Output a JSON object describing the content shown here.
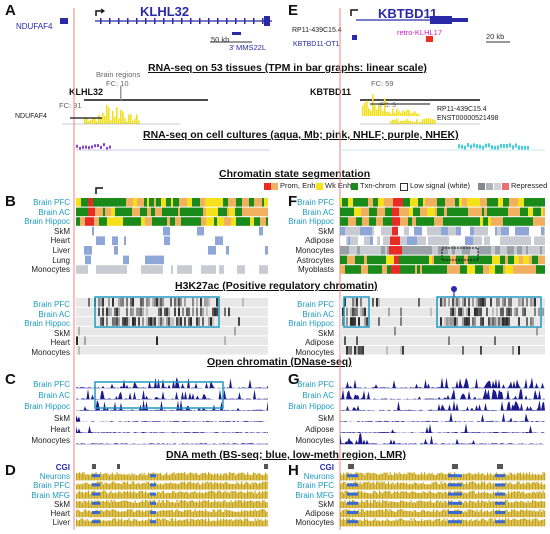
{
  "panels": {
    "A": "A",
    "B": "B",
    "C": "C",
    "D": "D",
    "E": "E",
    "F": "F",
    "G": "G",
    "H": "H"
  },
  "sections": {
    "rnaseq_tissues": "RNA-seq on 53 tissues (TPM in bar graphs: linear scale)",
    "rnaseq_cultures": "RNA-seq on cell cultures (aqua, Mb; pink, NHLF; purple, NHEK)",
    "chromatin_state": "Chromatin state segmentation",
    "h3k27ac": "H3K27ac (Positive regulatory chromatin)",
    "open_chromatin": "Open chromatin (DNase-seq)",
    "dna_meth": "DNA meth (BS-seq; blue, low-meth region, LMR)"
  },
  "legend": {
    "prom_enh": "Prom, Enh",
    "wk_enh": "Wk Enh",
    "txn_chrom": "Txn-chrom",
    "low_signal": "Low signal (white)",
    "repressed": "Repressed",
    "colors": {
      "prom": "#e82b24",
      "enh": "#f0b060",
      "wk": "#f5e11a",
      "txn": "#1a8a1a",
      "rep": "#9aa0a8"
    }
  },
  "left": {
    "genes": {
      "klhl32": "KLHL32",
      "nduf": "NDUFAF4",
      "mms": "MMS22L",
      "scale": "50 kb",
      "klhl32_small": "KLHL32",
      "nduf_small": "NDUFAF4",
      "three": "3'"
    },
    "brain_regions": "Brain regions",
    "fc_10": "FC: 10",
    "fc_31": "FC: 31",
    "tracks_B": [
      "Brain PFC",
      "Brain AC",
      "Brain Hippoc",
      "SkM",
      "Heart",
      "Liver",
      "Lung",
      "Monocytes"
    ],
    "tracks_K": [
      "Brain PFC",
      "Brain AC",
      "Brain Hippoc",
      "SkM",
      "Heart",
      "Monocytes"
    ],
    "tracks_C": [
      "Brain PFC",
      "Brain AC",
      "Brain Hippoc",
      "SkM",
      "Heart",
      "Monocytes"
    ],
    "tracks_D": [
      "CGI",
      "Neurons",
      "Brain PFC",
      "Brain MFG",
      "SkM",
      "Heart",
      "Liver"
    ]
  },
  "right": {
    "genes": {
      "kbtbd11": "KBTBD11",
      "rp11": "RP11-439C15.4",
      "kbtbd11_ot1": "KBTBD11-OT1",
      "retro": "retro-KLHL17",
      "scale": "20 kb",
      "kbtbd11_small": "KBTBD11",
      "rp11_b": "RP11-439C15.4",
      "enst": "ENST00000521498"
    },
    "fc_59": "FC: 59",
    "fc_5": "FC: 5",
    "tracks_F": [
      "Brain PFC",
      "Brain AC",
      "Brain Hippoc",
      "SkM",
      "Adipose",
      "Monocytes",
      "Astrocytes",
      "Myoblasts"
    ],
    "tracks_K": [
      "Brain PFC",
      "Brain AC",
      "Brain Hippoc",
      "SkM",
      "Adipose",
      "Monocytes"
    ],
    "tracks_G": [
      "Brain PFC",
      "Brain AC",
      "Brain Hippoc",
      "SkM",
      "Adipose",
      "Monocytes"
    ],
    "tracks_H": [
      "CGI",
      "Neurons",
      "Brain PFC",
      "Brain MFG",
      "SkM",
      "Adipose",
      "Monocytes"
    ]
  }
}
